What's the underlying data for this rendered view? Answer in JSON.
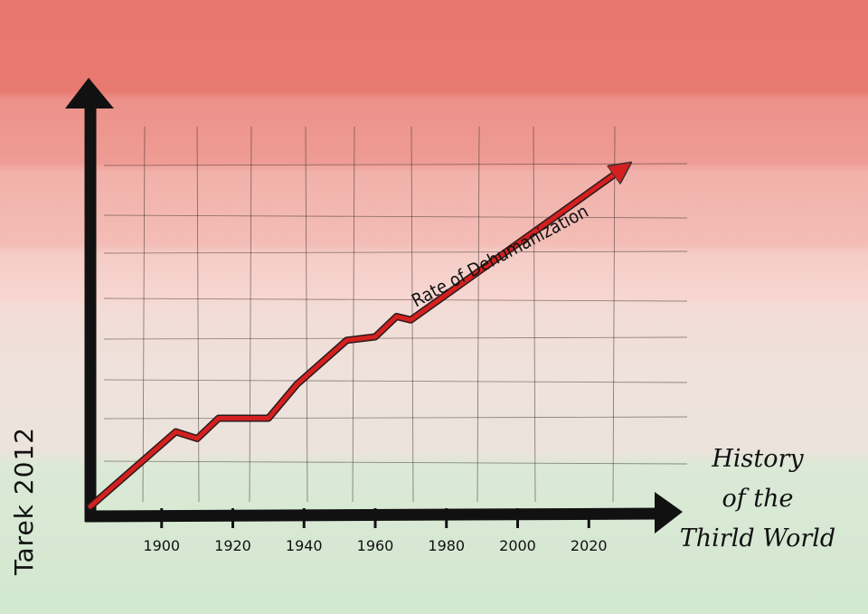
{
  "chart_data": {
    "type": "line",
    "title": "",
    "caption_lines": [
      "History",
      "of the",
      "Thirld World"
    ],
    "signature": "Tarek 2012",
    "series": [
      {
        "name": "Rate of Dehumanization",
        "color": "#d42020",
        "x": [
          1880,
          1904,
          1910,
          1916,
          1930,
          1938,
          1952,
          1960,
          1966,
          1970,
          2030
        ],
        "y": [
          0,
          2.2,
          2.0,
          2.6,
          2.6,
          3.6,
          4.9,
          5.0,
          5.6,
          5.5,
          10.0
        ]
      }
    ],
    "x_ticks": [
      "1900",
      "1920",
      "1940",
      "1960",
      "1980",
      "2000",
      "2020"
    ],
    "xlim": [
      1880,
      2040
    ],
    "ylim": [
      0,
      12
    ],
    "grid": true
  }
}
